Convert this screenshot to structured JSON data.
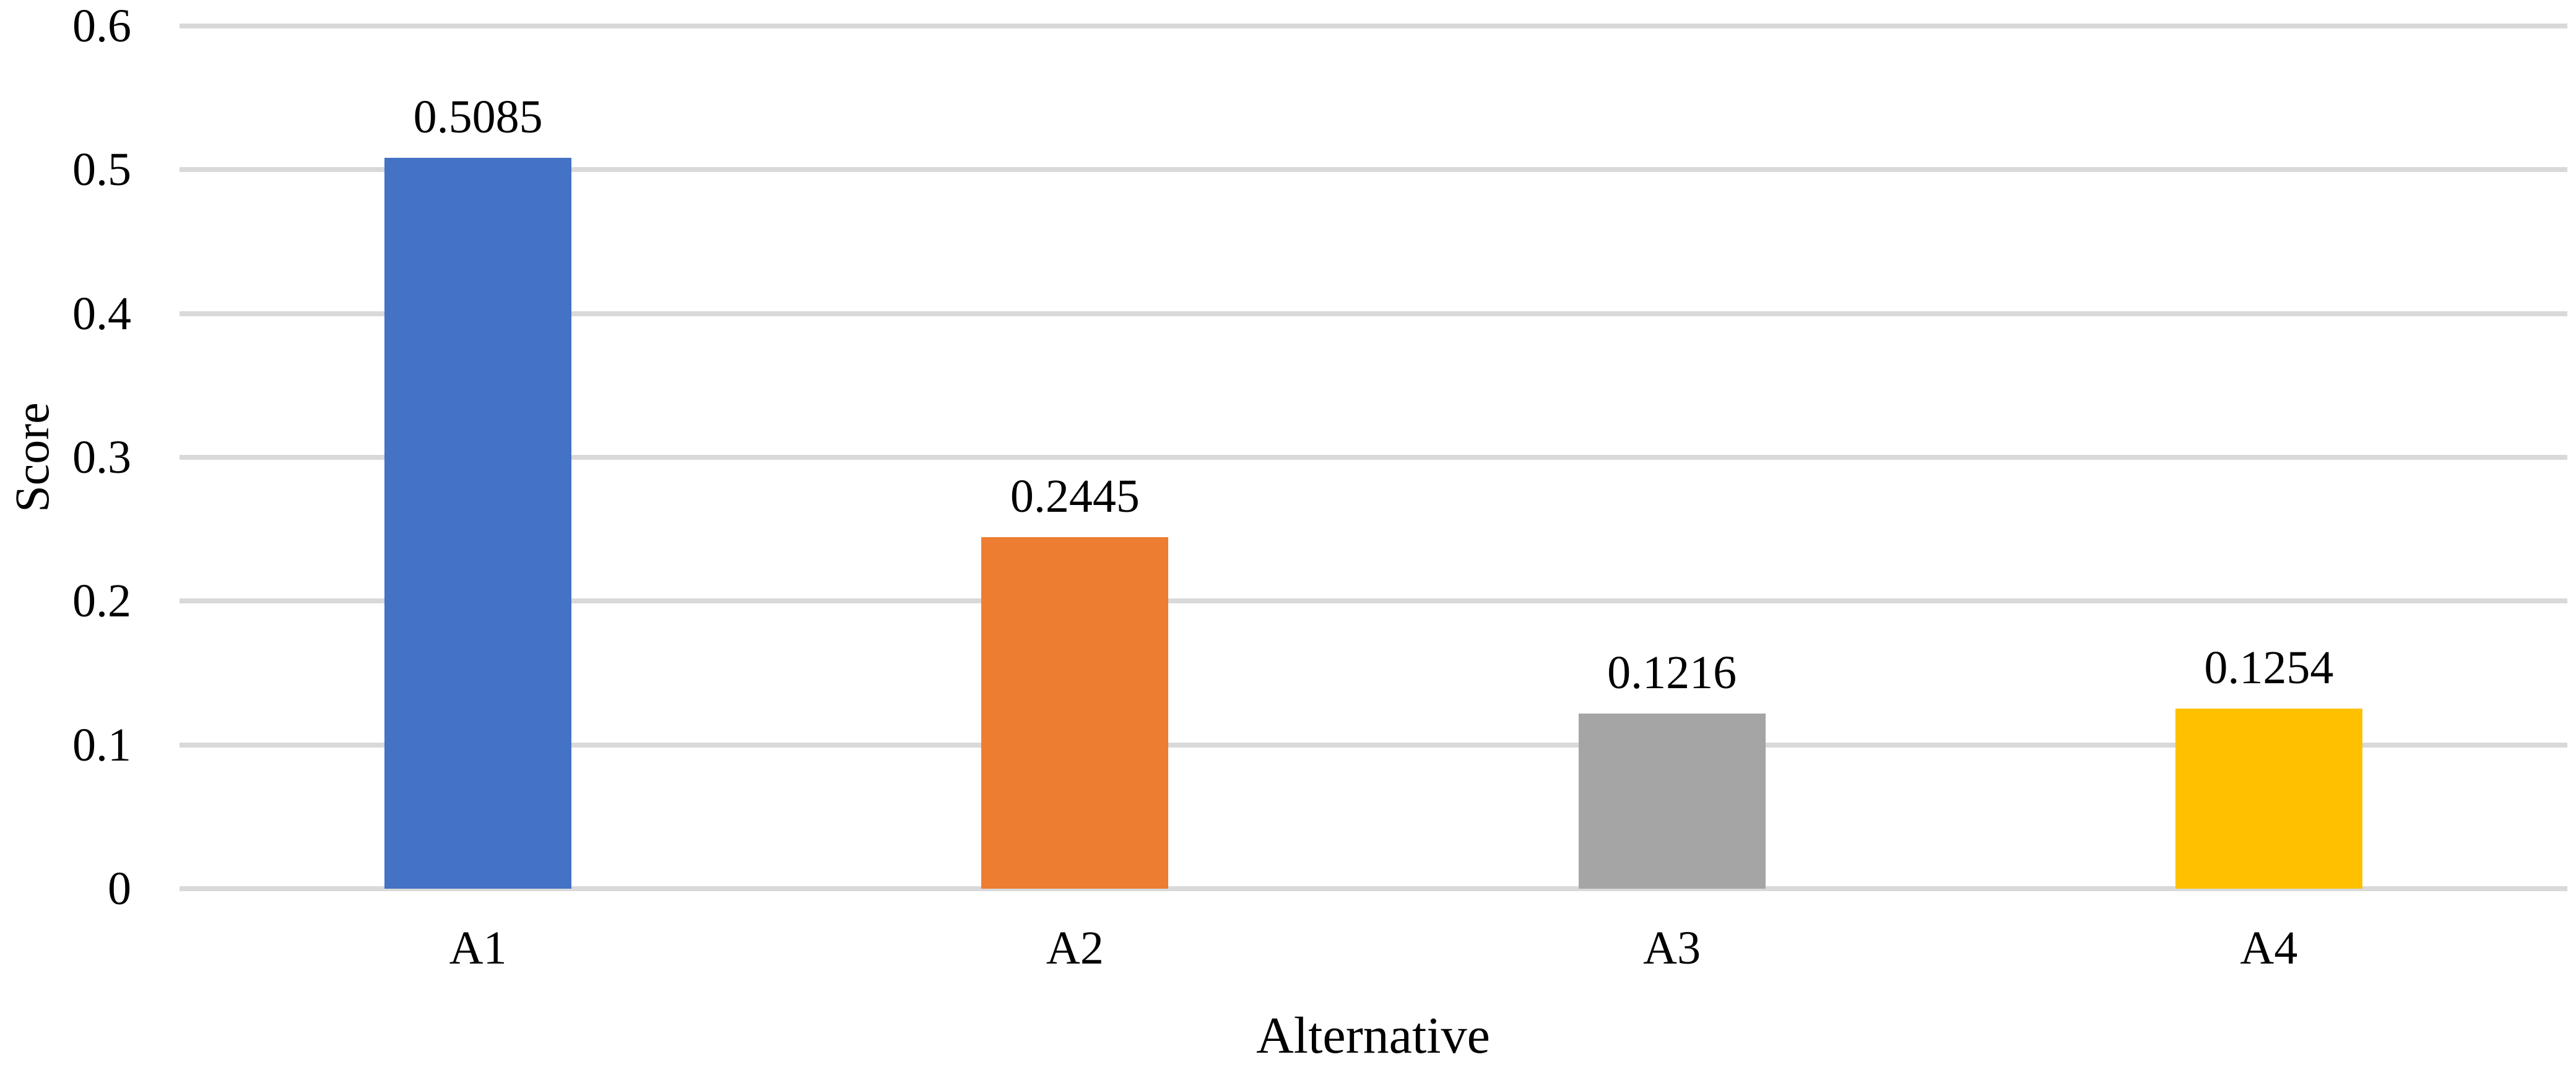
{
  "chart_data": {
    "type": "bar",
    "title": "",
    "xlabel": "Alternative",
    "ylabel": "Score",
    "categories": [
      "A1",
      "A2",
      "A3",
      "A4"
    ],
    "values": [
      0.5085,
      0.2445,
      0.1216,
      0.1254
    ],
    "value_labels": [
      "0.5085",
      "0.2445",
      "0.1216",
      "0.1254"
    ],
    "bar_colors": [
      "#4472C4",
      "#ED7D31",
      "#A5A5A5",
      "#FFC000"
    ],
    "ylim": [
      0,
      0.6
    ],
    "y_ticks": [
      0,
      0.1,
      0.2,
      0.3,
      0.4,
      0.5,
      0.6
    ],
    "y_tick_labels": [
      "0",
      "0.1",
      "0.2",
      "0.3",
      "0.4",
      "0.5",
      "0.6"
    ],
    "grid": "horizontal",
    "gridline_color": "#D9D9D9",
    "legend": "none",
    "background": "#FFFFFF"
  }
}
